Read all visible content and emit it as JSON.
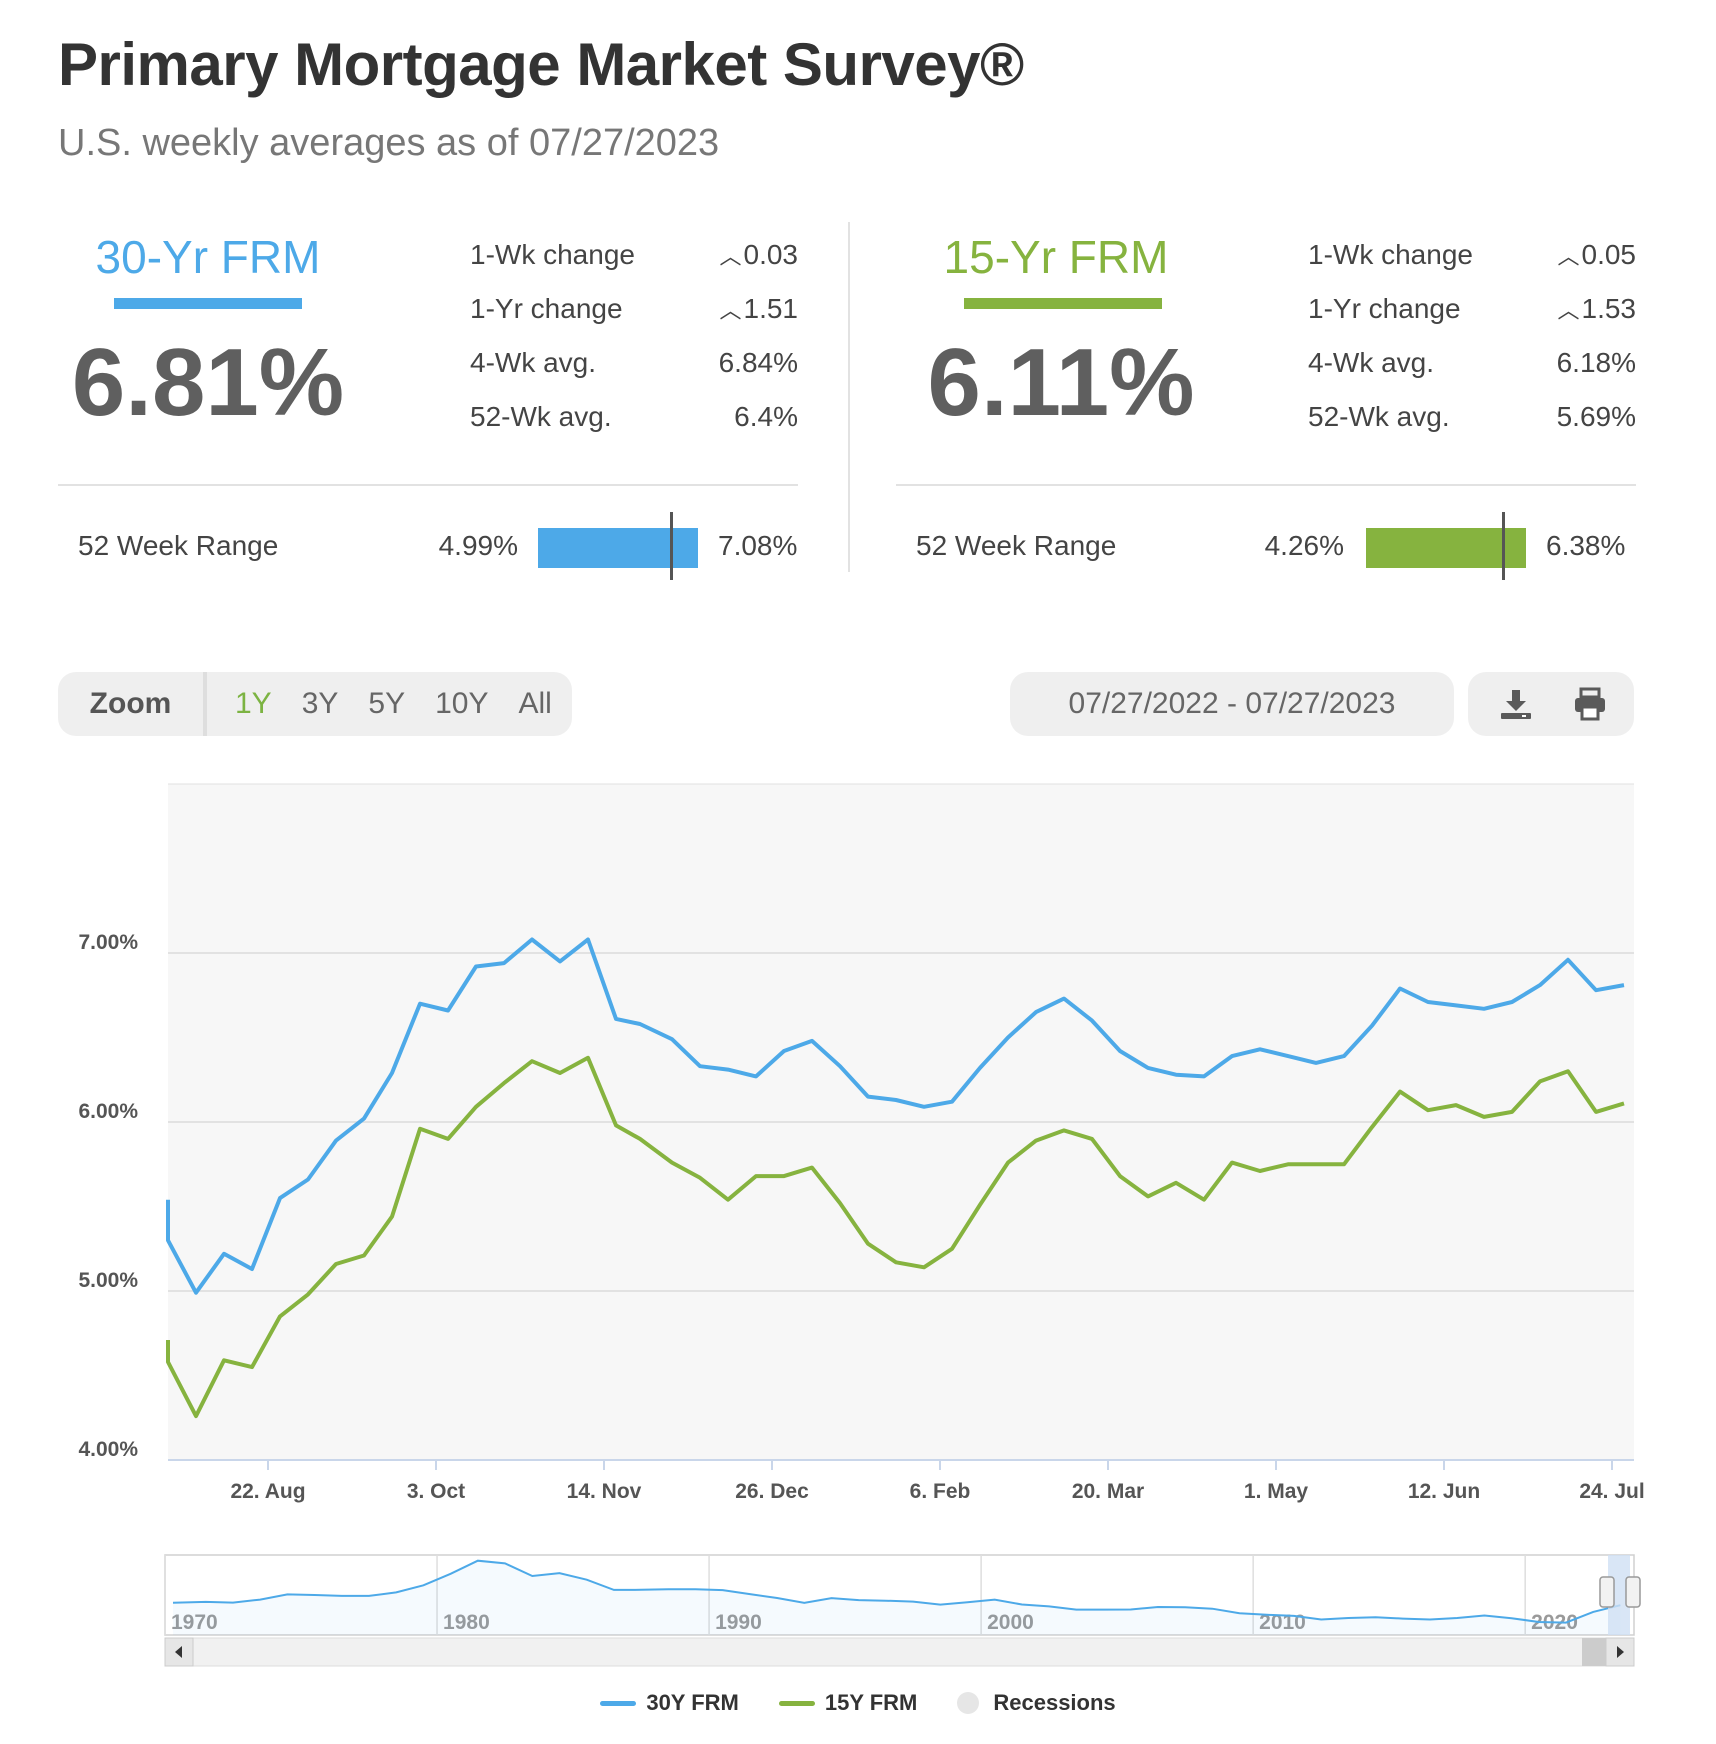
{
  "header": {
    "title": "Primary Mortgage Market Survey®",
    "subtitle": "U.S. weekly averages as of 07/27/2023"
  },
  "rate30": {
    "name": "30-Yr FRM",
    "value": "6.81%",
    "color": "#4da9e8",
    "stats": [
      {
        "label": "1-Wk change",
        "value": "0.03",
        "caret": "^"
      },
      {
        "label": "1-Yr change",
        "value": "1.51",
        "caret": "^"
      },
      {
        "label": "4-Wk avg.",
        "value": "6.84%",
        "caret": ""
      },
      {
        "label": "52-Wk avg.",
        "value": "6.4%",
        "caret": ""
      }
    ],
    "range_label": "52 Week Range",
    "range_min": "4.99%",
    "range_max": "7.08%",
    "range_fraction": 0.8325
  },
  "rate15": {
    "name": "15-Yr FRM",
    "value": "6.11%",
    "color": "#86b33f",
    "stats": [
      {
        "label": "1-Wk change",
        "value": "0.05",
        "caret": "^"
      },
      {
        "label": "1-Yr change",
        "value": "1.53",
        "caret": "^"
      },
      {
        "label": "4-Wk avg.",
        "value": "6.18%",
        "caret": ""
      },
      {
        "label": "52-Wk avg.",
        "value": "5.69%",
        "caret": ""
      }
    ],
    "range_label": "52 Week Range",
    "range_min": "4.26%",
    "range_max": "6.38%",
    "range_fraction": 0.8585
  },
  "toolbar": {
    "zoom_label": "Zoom",
    "zoom_options": [
      "1Y",
      "3Y",
      "5Y",
      "10Y",
      "All"
    ],
    "zoom_active": "1Y",
    "date_range": "07/27/2022 - 07/27/2023",
    "icons": [
      "download-icon",
      "print-icon"
    ]
  },
  "legend": {
    "items": [
      "30Y FRM",
      "15Y FRM",
      "Recessions"
    ]
  },
  "chart_data": {
    "type": "line",
    "ylim": [
      4.0,
      8.0
    ],
    "y_ticks": [
      4.0,
      5.0,
      6.0,
      7.0
    ],
    "y_tick_labels": [
      "4.00%",
      "5.00%",
      "6.00%",
      "7.00%"
    ],
    "x_tick_labels": [
      "22. Aug",
      "3. Oct",
      "14. Nov",
      "26. Dec",
      "6. Feb",
      "20. Mar",
      "1. May",
      "12. Jun",
      "24. Jul"
    ],
    "grid": true,
    "x": [
      "07/28/2022",
      "08/04/2022",
      "08/11/2022",
      "08/18/2022",
      "08/25/2022",
      "09/01/2022",
      "09/08/2022",
      "09/15/2022",
      "09/22/2022",
      "09/29/2022",
      "10/06/2022",
      "10/13/2022",
      "10/20/2022",
      "10/27/2022",
      "11/03/2022",
      "11/10/2022",
      "11/17/2022",
      "11/23/2022",
      "12/01/2022",
      "12/08/2022",
      "12/15/2022",
      "12/22/2022",
      "12/29/2022",
      "01/05/2023",
      "01/12/2023",
      "01/19/2023",
      "01/26/2023",
      "02/02/2023",
      "02/09/2023",
      "02/16/2023",
      "02/23/2023",
      "03/02/2023",
      "03/09/2023",
      "03/16/2023",
      "03/23/2023",
      "03/30/2023",
      "04/06/2023",
      "04/13/2023",
      "04/20/2023",
      "04/27/2023",
      "05/04/2023",
      "05/11/2023",
      "05/18/2023",
      "05/25/2023",
      "06/01/2023",
      "06/08/2023",
      "06/15/2023",
      "06/22/2023",
      "06/29/2023",
      "07/06/2023",
      "07/13/2023",
      "07/20/2023",
      "07/27/2023"
    ],
    "series": [
      {
        "name": "30Y FRM",
        "color": "#4da9e8",
        "values": [
          5.3,
          4.99,
          5.22,
          5.13,
          5.55,
          5.66,
          5.89,
          6.02,
          6.29,
          6.7,
          6.66,
          6.92,
          6.94,
          7.08,
          6.95,
          7.08,
          6.61,
          6.58,
          6.49,
          6.33,
          6.31,
          6.27,
          6.42,
          6.48,
          6.33,
          6.15,
          6.13,
          6.09,
          6.12,
          6.32,
          6.5,
          6.65,
          6.73,
          6.6,
          6.42,
          6.32,
          6.28,
          6.27,
          6.39,
          6.43,
          6.39,
          6.35,
          6.39,
          6.57,
          6.79,
          6.71,
          6.69,
          6.67,
          6.71,
          6.81,
          6.96,
          6.78,
          6.81
        ]
      },
      {
        "name": "15Y FRM",
        "color": "#86b33f",
        "values": [
          4.58,
          4.26,
          4.59,
          4.55,
          4.85,
          4.98,
          5.16,
          5.21,
          5.44,
          5.96,
          5.9,
          6.09,
          6.23,
          6.36,
          6.29,
          6.38,
          5.98,
          5.9,
          5.76,
          5.67,
          5.54,
          5.68,
          5.68,
          5.73,
          5.52,
          5.28,
          5.17,
          5.14,
          5.25,
          5.51,
          5.76,
          5.89,
          5.95,
          5.9,
          5.68,
          5.56,
          5.64,
          5.54,
          5.76,
          5.71,
          5.75,
          5.75,
          5.75,
          5.97,
          6.18,
          6.07,
          6.1,
          6.03,
          6.06,
          6.24,
          6.3,
          6.06,
          6.11
        ]
      }
    ],
    "navigator": {
      "x_tick_labels": [
        "1970",
        "1980",
        "1990",
        "2000",
        "2010",
        "2020"
      ],
      "years": [
        1971,
        1972,
        1973,
        1974,
        1975,
        1976,
        1977,
        1978,
        1979,
        1980,
        1981,
        1982,
        1983,
        1984,
        1985,
        1986,
        1987,
        1988,
        1989,
        1990,
        1991,
        1992,
        1993,
        1994,
        1995,
        1996,
        1997,
        1998,
        1999,
        2000,
        2001,
        2002,
        2003,
        2004,
        2005,
        2006,
        2007,
        2008,
        2009,
        2010,
        2011,
        2012,
        2013,
        2014,
        2015,
        2016,
        2017,
        2018,
        2019,
        2020,
        2021,
        2022,
        2023
      ],
      "values": [
        7.54,
        7.38,
        8.04,
        9.19,
        9.05,
        8.87,
        8.85,
        9.64,
        11.2,
        13.74,
        16.63,
        16.04,
        13.24,
        13.88,
        12.43,
        10.19,
        10.21,
        10.34,
        10.32,
        10.13,
        9.25,
        8.39,
        7.31,
        8.38,
        7.93,
        7.81,
        7.6,
        6.94,
        7.44,
        8.05,
        6.97,
        6.54,
        5.83,
        5.84,
        5.87,
        6.41,
        6.34,
        6.03,
        5.04,
        4.69,
        4.45,
        3.66,
        3.98,
        4.17,
        3.85,
        3.65,
        3.99,
        4.54,
        3.94,
        3.11,
        2.96,
        5.34,
        6.81
      ]
    }
  }
}
